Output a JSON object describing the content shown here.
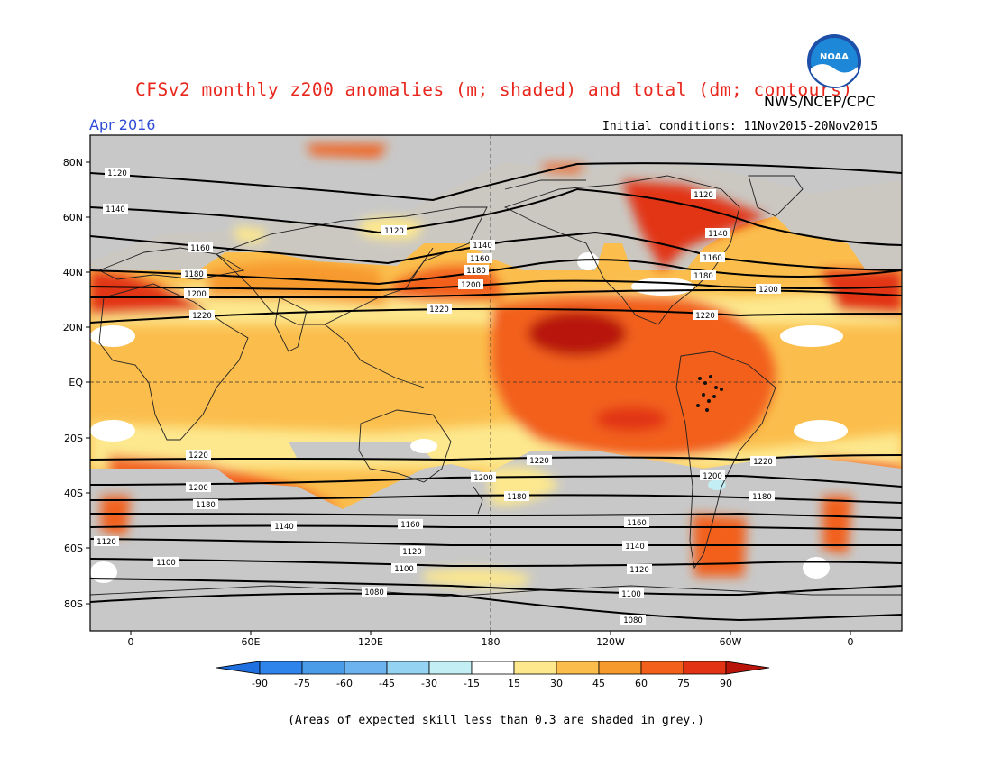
{
  "header": {
    "title": "CFSv2 monthly z200 anomalies (m; shaded) and total (dm; contours)",
    "agency": "NWS/NCEP/CPC",
    "forecast_month": "Apr 2016",
    "initial_conditions": "Initial conditions: 11Nov2015-20Nov2015",
    "logo_text": "NOAA"
  },
  "map": {
    "lat_ticks": [
      "80N",
      "60N",
      "40N",
      "20N",
      "EQ",
      "20S",
      "40S",
      "60S",
      "80S"
    ],
    "lon_ticks": [
      "0",
      "60E",
      "120E",
      "180",
      "120W",
      "60W",
      "0"
    ],
    "contour_labels": [
      "1080",
      "1100",
      "1120",
      "1140",
      "1160",
      "1180",
      "1200",
      "1220"
    ],
    "skill_mask_color": "#c8c8c8"
  },
  "colorbar": {
    "labels": [
      "-90",
      "-75",
      "-60",
      "-45",
      "-30",
      "-15",
      "15",
      "30",
      "45",
      "60",
      "75",
      "90"
    ],
    "colors": [
      "#1e6fe0",
      "#2e84ea",
      "#4a9be8",
      "#6cb3ef",
      "#94d3f2",
      "#c2eef4",
      "#ffffff",
      "#fde88e",
      "#fbbe4d",
      "#f79a2e",
      "#f2601c",
      "#e23414",
      "#b8140a"
    ]
  },
  "footer": {
    "note": "(Areas of expected skill less than 0.3 are shaded in grey.)"
  }
}
